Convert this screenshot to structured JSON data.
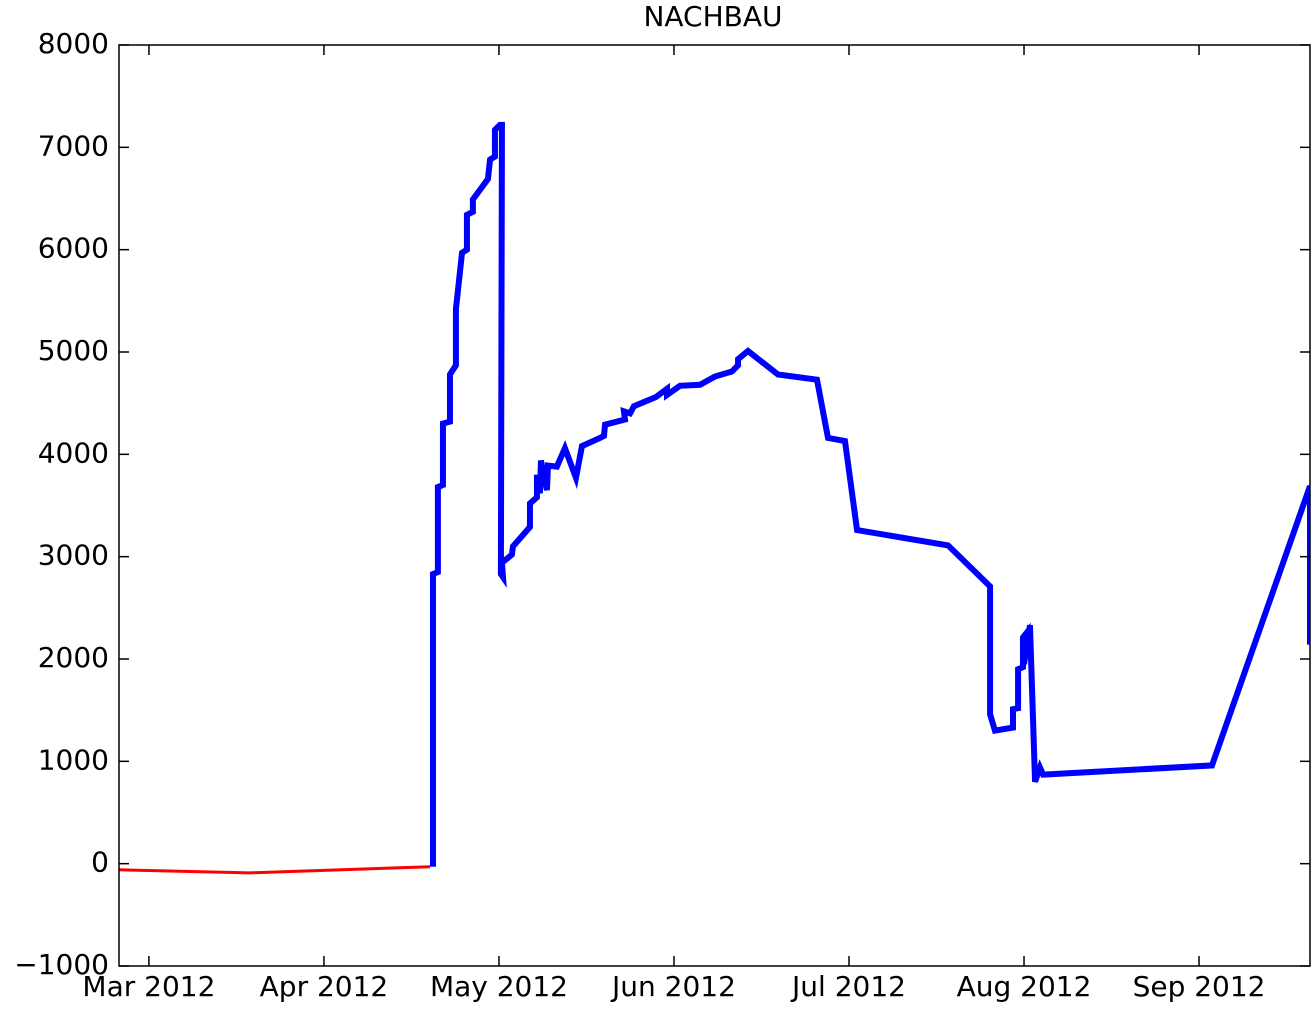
{
  "chart_data": {
    "type": "line",
    "title": "NACHBAU",
    "xlim": [
      2.829,
      9.634
    ],
    "xticks": [
      {
        "value": 3,
        "label": "Mar 2012"
      },
      {
        "value": 4,
        "label": "Apr 2012"
      },
      {
        "value": 5,
        "label": "May 2012"
      },
      {
        "value": 6,
        "label": "Jun 2012"
      },
      {
        "value": 7,
        "label": "Jul 2012"
      },
      {
        "value": 8,
        "label": "Aug 2012"
      },
      {
        "value": 9,
        "label": "Sep 2012"
      }
    ],
    "ylim": [
      -1000,
      8000
    ],
    "yticks": [
      {
        "value": -1000,
        "label": "−1000"
      },
      0,
      1000,
      2000,
      3000,
      4000,
      5000,
      6000,
      7000,
      8000
    ],
    "series": [
      {
        "color": "#ff0000",
        "line_width": 3,
        "x": [
          2.829,
          3.571,
          4.606
        ],
        "values": [
          -60,
          -90,
          -30
        ]
      },
      {
        "color": "#0000ff",
        "line_width": 6,
        "x": [
          4.623,
          4.623,
          4.651,
          4.651,
          4.68,
          4.68,
          4.72,
          4.72,
          4.754,
          4.754,
          4.789,
          4.817,
          4.817,
          4.851,
          4.851,
          4.937,
          4.949,
          4.977,
          4.977,
          5.006,
          5.017,
          5.011,
          5.023,
          5.017,
          5.074,
          5.08,
          5.177,
          5.177,
          5.217,
          5.217,
          5.234,
          5.24,
          5.274,
          5.28,
          5.331,
          5.377,
          5.44,
          5.474,
          5.577,
          5.6,
          5.606,
          5.72,
          5.714,
          5.749,
          5.771,
          5.897,
          5.96,
          5.96,
          6.034,
          6.149,
          6.234,
          6.331,
          6.366,
          6.366,
          6.423,
          6.594,
          6.817,
          6.88,
          6.977,
          7.046,
          7.566,
          7.806,
          7.806,
          7.834,
          7.937,
          7.937,
          7.966,
          7.966,
          7.994,
          7.994,
          8.017,
          8.0,
          8.034,
          8.063,
          8.091,
          8.109,
          9.074,
          9.634,
          9.634
        ],
        "values": [
          -30,
          2830,
          2850,
          3680,
          3700,
          4300,
          4320,
          4780,
          4870,
          5420,
          5970,
          6000,
          6340,
          6370,
          6490,
          6690,
          6880,
          6910,
          7170,
          7220,
          7220,
          2830,
          2800,
          2940,
          3020,
          3100,
          3290,
          3520,
          3580,
          3800,
          3620,
          3940,
          3650,
          3890,
          3880,
          4060,
          3770,
          4080,
          4160,
          4180,
          4290,
          4340,
          4420,
          4400,
          4470,
          4560,
          4640,
          4580,
          4670,
          4680,
          4760,
          4810,
          4870,
          4930,
          5010,
          4780,
          4730,
          4160,
          4130,
          3260,
          3110,
          2710,
          1460,
          1300,
          1330,
          1510,
          1520,
          1900,
          1920,
          2210,
          2260,
          1950,
          2330,
          800,
          940,
          870,
          960,
          3690,
          2140
        ]
      }
    ]
  }
}
